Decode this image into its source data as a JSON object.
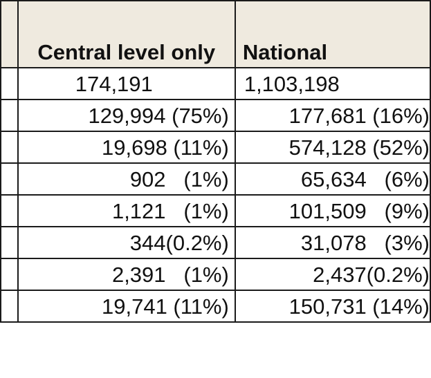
{
  "table": {
    "headers": {
      "category": "",
      "central": "Central level only",
      "national": "National"
    },
    "rows": [
      {
        "central": "174,191",
        "national": "1,103,198"
      },
      {
        "central": "129,994 (75%)",
        "national": "177,681 (16%)"
      },
      {
        "central": "19,698 (11%)",
        "national": "574,128 (52%)"
      },
      {
        "central": "902   (1%)",
        "national": "65,634   (6%)"
      },
      {
        "central": "1,121   (1%)",
        "national": "101,509   (9%)"
      },
      {
        "central": "344(0.2%)",
        "national": "31,078   (3%)"
      },
      {
        "central": "2,391   (1%)",
        "national": "2,437(0.2%)"
      },
      {
        "central": "19,741 (11%)",
        "national": "150,731 (14%)"
      }
    ]
  }
}
